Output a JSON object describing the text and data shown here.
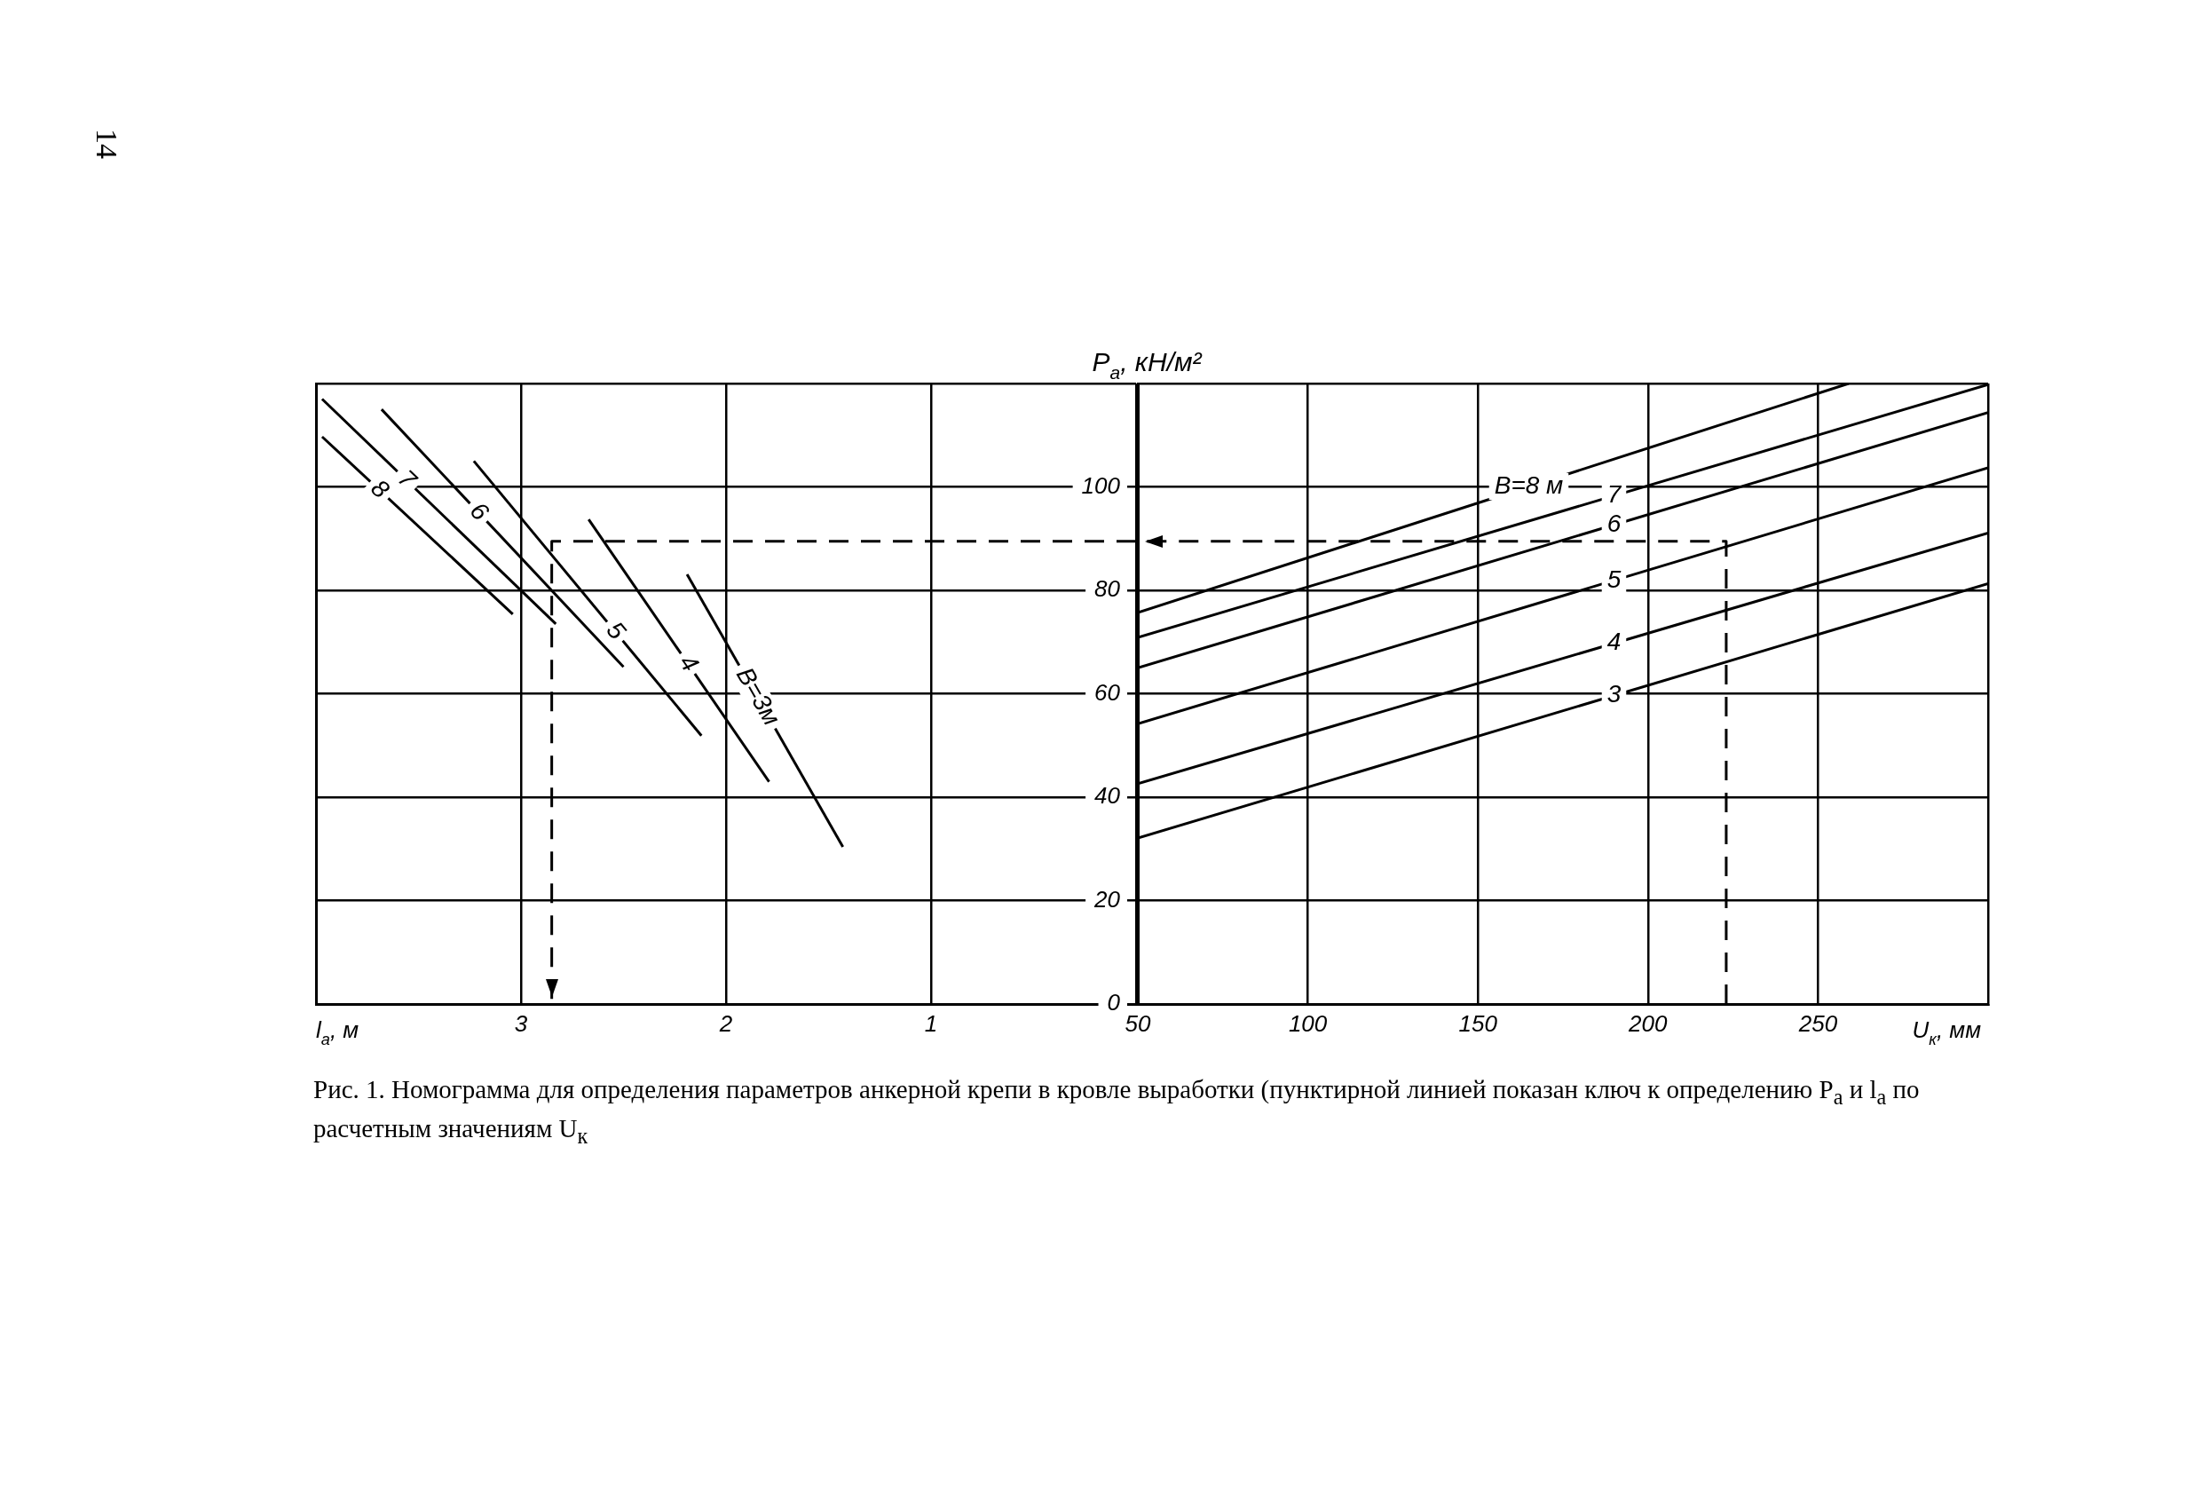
{
  "chart_data": [
    {
      "type": "line",
      "xlabel": "l$_{a}$, м",
      "xlim": [
        4,
        0
      ],
      "xticks": [
        {
          "value": 4,
          "label": null
        },
        3,
        2,
        1,
        {
          "value": 0,
          "label": null
        }
      ],
      "ylim": [
        0,
        120
      ],
      "yticks": [
        0,
        20,
        40,
        60,
        80,
        100,
        {
          "value": 120,
          "label": null
        }
      ],
      "tick_labels": "x",
      "grid": true,
      "marker": "none",
      "annotations": [
        "14"
      ],
      "series": [
        {
          "name": "8",
          "color": "#000000",
          "x": [
            3.97,
            3.04
          ],
          "values": [
            109.7,
            75.4
          ]
        },
        {
          "name": "7",
          "color": "#000000",
          "x": [
            3.97,
            2.83
          ],
          "values": [
            117,
            73.5
          ]
        },
        {
          "name": "6",
          "color": "#000000",
          "x": [
            3.68,
            2.5
          ],
          "values": [
            115,
            65.2
          ]
        },
        {
          "name": "5",
          "color": "#000000",
          "x": [
            3.23,
            2.12
          ],
          "values": [
            105,
            51.9
          ]
        },
        {
          "name": "4",
          "color": "#000000",
          "x": [
            2.67,
            1.79
          ],
          "values": [
            93.7,
            43
          ]
        },
        {
          "name": "В=3м",
          "color": "#000000",
          "x": [
            2.19,
            1.43
          ],
          "values": [
            83.1,
            30.4
          ]
        },
        {
          "color": "#000000",
          "line_style": "dashed",
          "x": [
            0,
            2.85,
            2.85
          ],
          "values": [
            89.5,
            89.5,
            0
          ]
        }
      ]
    },
    {
      "type": "line",
      "xlabel": "U$_{к}$, мм",
      "ylabel": "P$_{a}$, кН/м²",
      "xlim": [
        50,
        300
      ],
      "xticks": [
        50,
        100,
        150,
        200,
        250,
        {
          "value": 300,
          "label": null
        }
      ],
      "ylim": [
        0,
        120
      ],
      "yticks": [
        0,
        20,
        40,
        60,
        80,
        100,
        {
          "value": 120,
          "label": null
        }
      ],
      "grid": true,
      "marker": "none",
      "annotations": [
        "Рис. 1. Номограмма для определения параметров анкерной крепи в кровле выработки (пунктирной линией показан ключ к определению P$_{а}$ и l$_{а}$ по расчетным значениям U$_{к}$"
      ],
      "series": [
        {
          "name": "В=8 м",
          "color": "#000000",
          "x": [
            50,
            259
          ],
          "values": [
            75.7,
            120
          ]
        },
        {
          "name": "7",
          "color": "#000000",
          "x": [
            50,
            300
          ],
          "values": [
            70.9,
            119.8
          ]
        },
        {
          "name": "6",
          "color": "#000000",
          "x": [
            50,
            300
          ],
          "values": [
            65,
            114.4
          ]
        },
        {
          "name": "5",
          "color": "#000000",
          "x": [
            50,
            300
          ],
          "values": [
            54.2,
            103.7
          ]
        },
        {
          "name": "4",
          "color": "#000000",
          "x": [
            50,
            300
          ],
          "values": [
            42.6,
            91.1
          ]
        },
        {
          "name": "3",
          "color": "#000000",
          "x": [
            50,
            300
          ],
          "values": [
            32.1,
            81.3
          ]
        },
        {
          "color": "#000000",
          "line_style": "dashed",
          "x": [
            223,
            223,
            50
          ],
          "values": [
            0,
            89.5,
            89.5
          ]
        }
      ]
    }
  ]
}
